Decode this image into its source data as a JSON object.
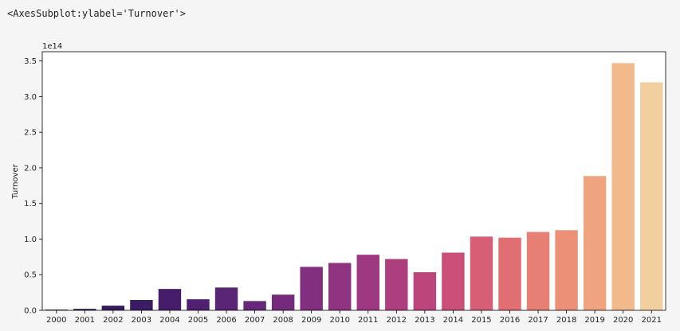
{
  "output": {
    "repr_text": "<AxesSubplot:ylabel='Turnover'>"
  },
  "chart_data": {
    "type": "bar",
    "title": "",
    "xlabel": "",
    "ylabel": "Turnover",
    "offset_label": "1e14",
    "ylim": [
      0,
      3.63
    ],
    "y_ticks": [
      "0.0",
      "0.5",
      "1.0",
      "1.5",
      "2.0",
      "2.5",
      "3.0",
      "3.5"
    ],
    "y_tick_values": [
      0,
      0.5,
      1.0,
      1.5,
      2.0,
      2.5,
      3.0,
      3.5
    ],
    "grid": false,
    "legend": false,
    "categories": [
      "2000",
      "2001",
      "2002",
      "2003",
      "2004",
      "2005",
      "2006",
      "2007",
      "2008",
      "2009",
      "2010",
      "2011",
      "2012",
      "2013",
      "2014",
      "2015",
      "2016",
      "2017",
      "2018",
      "2019",
      "2020",
      "2021"
    ],
    "values": [
      0.01,
      0.02,
      0.065,
      0.145,
      0.3,
      0.155,
      0.32,
      0.13,
      0.22,
      0.61,
      0.665,
      0.78,
      0.72,
      0.535,
      0.81,
      1.035,
      1.02,
      1.1,
      1.125,
      1.885,
      3.47,
      3.2
    ],
    "value_multiplier": 100000000000000.0,
    "palette": "magma",
    "colors": [
      "#271446",
      "#2d1650",
      "#361a5b",
      "#3b1b63",
      "#451d6b",
      "#4f2070",
      "#5b2575",
      "#672879",
      "#742b7c",
      "#822f7f",
      "#903380",
      "#9e3880",
      "#ad3f7e",
      "#bc467b",
      "#ca5079",
      "#d65f76",
      "#e06e73",
      "#e77f74",
      "#ec9177",
      "#efa47f",
      "#f1b98c",
      "#f2cf9f"
    ],
    "axes_color": "#000000"
  }
}
